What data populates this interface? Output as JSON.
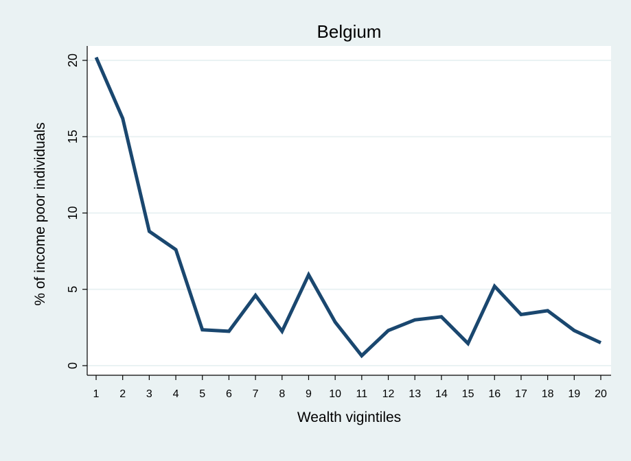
{
  "chart_data": {
    "type": "line",
    "title": "Belgium",
    "xlabel": "Wealth vigintiles",
    "ylabel": "% of income poor individuals",
    "x": [
      1,
      2,
      3,
      4,
      5,
      6,
      7,
      8,
      9,
      10,
      11,
      12,
      13,
      14,
      15,
      16,
      17,
      18,
      19,
      20
    ],
    "x_tick_labels": [
      "1",
      "2",
      "3",
      "4",
      "5",
      "6",
      "7",
      "8",
      "9",
      "10",
      "11",
      "12",
      "13",
      "14",
      "15",
      "16",
      "17",
      "18",
      "19",
      "20"
    ],
    "y_ticks": [
      0,
      5,
      10,
      15,
      20
    ],
    "y_tick_labels": [
      "0",
      "5",
      "10",
      "15",
      "20"
    ],
    "ylim": [
      0,
      20
    ],
    "xlim": [
      1,
      20
    ],
    "grid": true,
    "colors": {
      "line": "#1a476f",
      "plot_bg": "#ffffff",
      "page_bg": "#eaf2f3",
      "grid": "#eaf2f3"
    },
    "series": [
      {
        "values": [
          20.2,
          16.2,
          8.8,
          7.6,
          2.35,
          2.25,
          4.6,
          2.25,
          5.95,
          2.85,
          0.65,
          2.3,
          3.0,
          3.2,
          1.45,
          5.2,
          3.35,
          3.6,
          2.3,
          1.5
        ]
      }
    ]
  }
}
